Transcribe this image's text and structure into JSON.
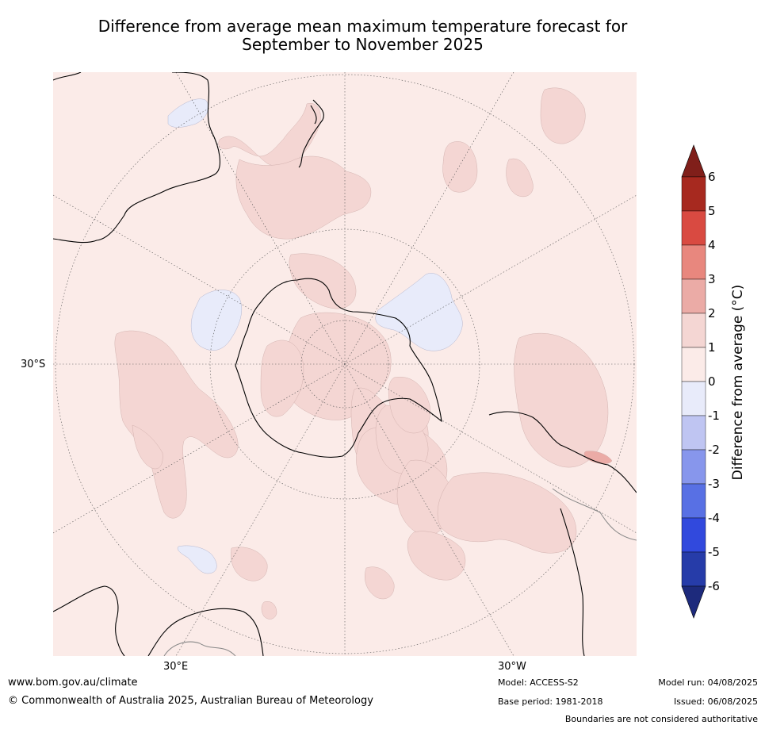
{
  "title_line1": "Difference from average mean maximum temperature forecast for",
  "title_line2": "September to November 2025",
  "map": {
    "lat_label": "30°S",
    "lon_label_left": "30°E",
    "lon_label_right": "30°W",
    "colors": {
      "background_class": "#fbebe8",
      "warm_class": "#f4d6d3",
      "warmer_class": "#ebaba6",
      "cool_class": "#e8ebfa",
      "coast": "#000000",
      "boundary": "#888888"
    }
  },
  "colorbar": {
    "label": "Difference from average (°C)",
    "ticks": [
      "6",
      "5",
      "4",
      "3",
      "2",
      "1",
      "0",
      "-1",
      "-2",
      "-3",
      "-4",
      "-5",
      "-6"
    ],
    "colors_top_to_bottom": [
      "#801f1a",
      "#a7291f",
      "#d94a41",
      "#e8877e",
      "#ebaba6",
      "#f4d6d3",
      "#fbebe8",
      "#e8ebfa",
      "#bfc5f2",
      "#8796ec",
      "#5870e4",
      "#3149dd",
      "#263ca9",
      "#1d2a7c"
    ]
  },
  "footer": {
    "website": "www.bom.gov.au/climate",
    "copyright": "© Commonwealth of Australia 2025, Australian Bureau of Meteorology",
    "model": "Model: ACCESS-S2",
    "base_period": "Base period: 1981-2018",
    "model_run": "Model run: 04/08/2025",
    "issued": "Issued: 06/08/2025",
    "disclaimer": "Boundaries are not considered authoritative"
  }
}
